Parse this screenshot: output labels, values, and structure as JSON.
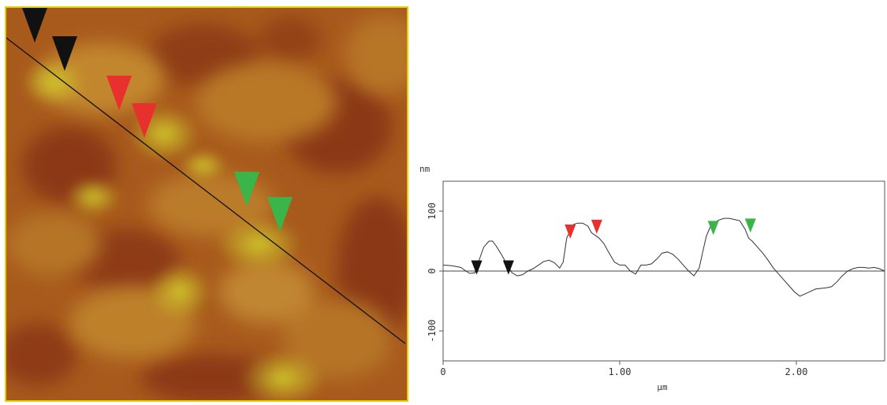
{
  "afm_image": {
    "border_color": "#e3d200",
    "markers": [
      {
        "color": "#111111",
        "group": "black"
      },
      {
        "color": "#111111",
        "group": "black"
      },
      {
        "color": "#e8312c",
        "group": "red"
      },
      {
        "color": "#e8312c",
        "group": "red"
      },
      {
        "color": "#3bb54a",
        "group": "green"
      },
      {
        "color": "#3bb54a",
        "group": "green"
      }
    ]
  },
  "chart_data": {
    "type": "line",
    "title": "",
    "ylabel": "nm",
    "xlabel": "µm",
    "xlim": [
      0,
      2.5
    ],
    "ylim": [
      -150,
      150
    ],
    "x_ticks": [
      {
        "value": 0,
        "label": "0"
      },
      {
        "value": 1.0,
        "label": "1.00"
      },
      {
        "value": 2.0,
        "label": "2.00"
      }
    ],
    "y_ticks": [
      {
        "value": 100,
        "label": "100"
      },
      {
        "value": 0,
        "label": "0"
      },
      {
        "value": -100,
        "label": "-100"
      }
    ],
    "zero_line": true,
    "grid": false,
    "series": [
      {
        "color": "#333333",
        "x": [
          0.0,
          0.05,
          0.1,
          0.12,
          0.15,
          0.18,
          0.2,
          0.23,
          0.26,
          0.28,
          0.3,
          0.33,
          0.36,
          0.39,
          0.42,
          0.45,
          0.48,
          0.51,
          0.54,
          0.57,
          0.6,
          0.63,
          0.66,
          0.68,
          0.7,
          0.72,
          0.74,
          0.76,
          0.79,
          0.82,
          0.84,
          0.86,
          0.88,
          0.91,
          0.94,
          0.97,
          1.0,
          1.03,
          1.06,
          1.09,
          1.12,
          1.15,
          1.18,
          1.21,
          1.24,
          1.27,
          1.3,
          1.33,
          1.36,
          1.39,
          1.42,
          1.45,
          1.47,
          1.49,
          1.51,
          1.53,
          1.56,
          1.59,
          1.62,
          1.65,
          1.68,
          1.71,
          1.73,
          1.75,
          1.78,
          1.81,
          1.84,
          1.87,
          1.9,
          1.93,
          1.96,
          1.99,
          2.02,
          2.05,
          2.08,
          2.11,
          2.14,
          2.17,
          2.2,
          2.23,
          2.26,
          2.29,
          2.32,
          2.35,
          2.38,
          2.41,
          2.44,
          2.47,
          2.5
        ],
        "y": [
          10,
          9,
          6,
          2,
          -4,
          -3,
          15,
          40,
          50,
          50,
          42,
          28,
          12,
          -3,
          -8,
          -6,
          0,
          4,
          10,
          16,
          18,
          14,
          5,
          15,
          55,
          68,
          78,
          80,
          80,
          75,
          64,
          60,
          56,
          46,
          30,
          15,
          10,
          10,
          0,
          -5,
          10,
          10,
          12,
          20,
          30,
          32,
          28,
          20,
          10,
          0,
          -8,
          5,
          32,
          58,
          72,
          80,
          85,
          88,
          88,
          86,
          84,
          70,
          55,
          50,
          40,
          30,
          18,
          5,
          -5,
          -15,
          -25,
          -35,
          -42,
          -38,
          -34,
          -30,
          -29,
          -28,
          -26,
          -18,
          -8,
          0,
          4,
          6,
          6,
          5,
          6,
          4,
          0
        ]
      }
    ],
    "markers": [
      {
        "x": 0.19,
        "y": -6,
        "color": "#111111"
      },
      {
        "x": 0.37,
        "y": -6,
        "color": "#111111"
      },
      {
        "x": 0.72,
        "y": 54,
        "color": "#e8312c"
      },
      {
        "x": 0.87,
        "y": 62,
        "color": "#e8312c"
      },
      {
        "x": 1.53,
        "y": 60,
        "color": "#3bb54a"
      },
      {
        "x": 1.74,
        "y": 64,
        "color": "#3bb54a"
      }
    ]
  }
}
